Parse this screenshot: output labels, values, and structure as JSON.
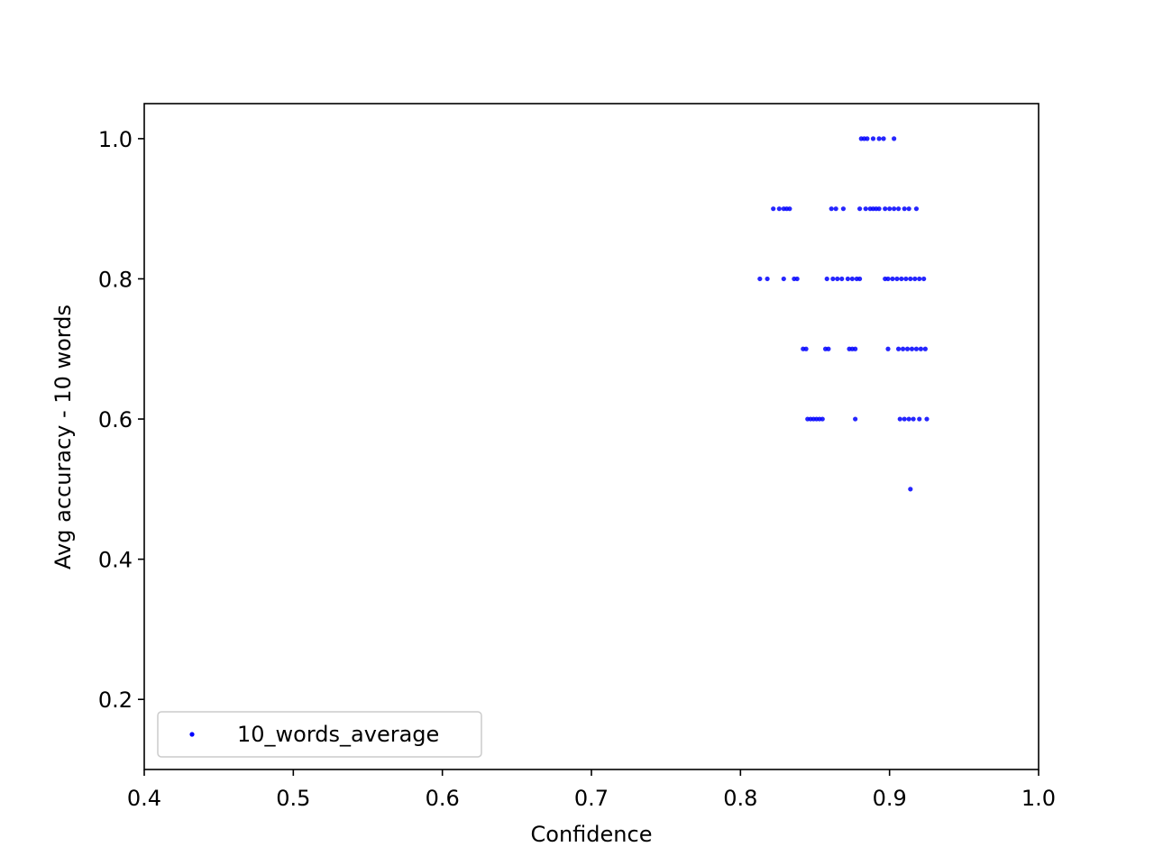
{
  "chart_data": {
    "type": "scatter",
    "title": "",
    "xlabel": "Confidence",
    "ylabel": "Avg accuracy - 10 words",
    "xlim": [
      0.4,
      1.0
    ],
    "ylim": [
      0.1,
      1.05
    ],
    "xticks": [
      "0.4",
      "0.5",
      "0.6",
      "0.7",
      "0.8",
      "0.9",
      "1.0"
    ],
    "yticks": [
      "0.2",
      "0.4",
      "0.6",
      "0.8",
      "1.0"
    ],
    "grid": false,
    "legend_position": "lower-left",
    "marker_color": "#0000ff",
    "series": [
      {
        "name": "10_words_average",
        "points": [
          [
            0.881,
            1.0
          ],
          [
            0.883,
            1.0
          ],
          [
            0.885,
            1.0
          ],
          [
            0.889,
            1.0
          ],
          [
            0.893,
            1.0
          ],
          [
            0.896,
            1.0
          ],
          [
            0.903,
            1.0
          ],
          [
            0.822,
            0.9
          ],
          [
            0.826,
            0.9
          ],
          [
            0.829,
            0.9
          ],
          [
            0.831,
            0.9
          ],
          [
            0.833,
            0.9
          ],
          [
            0.861,
            0.9
          ],
          [
            0.864,
            0.9
          ],
          [
            0.869,
            0.9
          ],
          [
            0.88,
            0.9
          ],
          [
            0.884,
            0.9
          ],
          [
            0.887,
            0.9
          ],
          [
            0.889,
            0.9
          ],
          [
            0.891,
            0.9
          ],
          [
            0.893,
            0.9
          ],
          [
            0.897,
            0.9
          ],
          [
            0.9,
            0.9
          ],
          [
            0.903,
            0.9
          ],
          [
            0.906,
            0.9
          ],
          [
            0.91,
            0.9
          ],
          [
            0.913,
            0.9
          ],
          [
            0.918,
            0.9
          ],
          [
            0.813,
            0.8
          ],
          [
            0.818,
            0.8
          ],
          [
            0.829,
            0.8
          ],
          [
            0.836,
            0.8
          ],
          [
            0.838,
            0.8
          ],
          [
            0.858,
            0.8
          ],
          [
            0.862,
            0.8
          ],
          [
            0.865,
            0.8
          ],
          [
            0.868,
            0.8
          ],
          [
            0.872,
            0.8
          ],
          [
            0.875,
            0.8
          ],
          [
            0.878,
            0.8
          ],
          [
            0.88,
            0.8
          ],
          [
            0.897,
            0.8
          ],
          [
            0.899,
            0.8
          ],
          [
            0.902,
            0.8
          ],
          [
            0.905,
            0.8
          ],
          [
            0.908,
            0.8
          ],
          [
            0.911,
            0.8
          ],
          [
            0.914,
            0.8
          ],
          [
            0.917,
            0.8
          ],
          [
            0.92,
            0.8
          ],
          [
            0.923,
            0.8
          ],
          [
            0.842,
            0.7
          ],
          [
            0.844,
            0.7
          ],
          [
            0.857,
            0.7
          ],
          [
            0.859,
            0.7
          ],
          [
            0.873,
            0.7
          ],
          [
            0.875,
            0.7
          ],
          [
            0.877,
            0.7
          ],
          [
            0.899,
            0.7
          ],
          [
            0.906,
            0.7
          ],
          [
            0.909,
            0.7
          ],
          [
            0.912,
            0.7
          ],
          [
            0.915,
            0.7
          ],
          [
            0.918,
            0.7
          ],
          [
            0.921,
            0.7
          ],
          [
            0.924,
            0.7
          ],
          [
            0.845,
            0.6
          ],
          [
            0.847,
            0.6
          ],
          [
            0.849,
            0.6
          ],
          [
            0.851,
            0.6
          ],
          [
            0.853,
            0.6
          ],
          [
            0.855,
            0.6
          ],
          [
            0.877,
            0.6
          ],
          [
            0.907,
            0.6
          ],
          [
            0.91,
            0.6
          ],
          [
            0.913,
            0.6
          ],
          [
            0.916,
            0.6
          ],
          [
            0.92,
            0.6
          ],
          [
            0.925,
            0.6
          ],
          [
            0.914,
            0.5
          ]
        ]
      }
    ]
  }
}
